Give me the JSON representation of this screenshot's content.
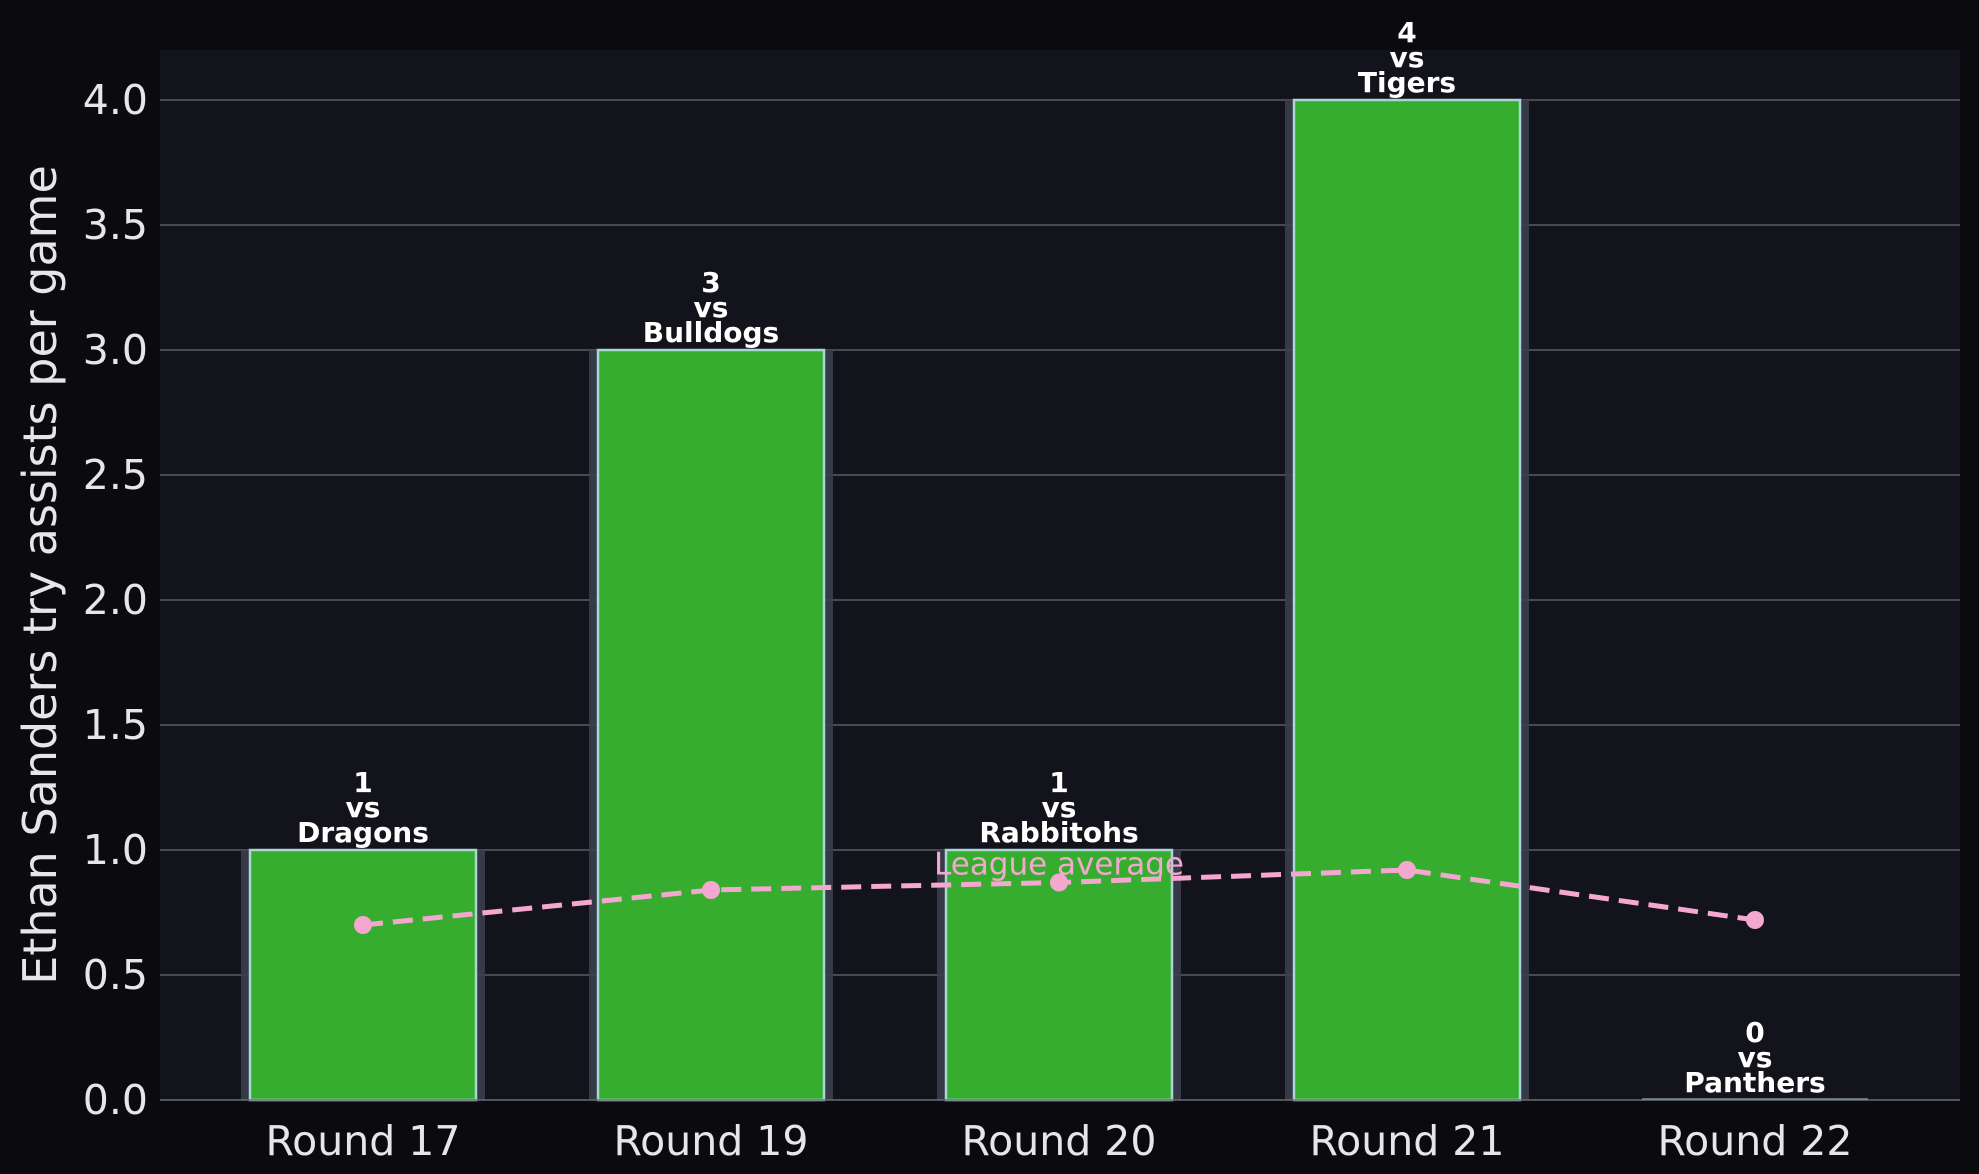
{
  "chart_data": {
    "type": "bar",
    "categories": [
      "Round 17",
      "Round 19",
      "Round 20",
      "Round 21",
      "Round 22"
    ],
    "series": [
      {
        "values": [
          1,
          3,
          1,
          4,
          0
        ],
        "color": "#36ad2f"
      },
      {
        "name": "League average",
        "type": "line",
        "values": [
          0.7,
          0.84,
          0.87,
          0.92,
          0.72
        ],
        "color": "#f4a7cf",
        "style": "dashed"
      }
    ],
    "opponents": [
      "Dragons",
      "Bulldogs",
      "Rabbitohs",
      "Tigers",
      "Panthers"
    ],
    "bar_label_connector": "vs",
    "series_label": "League average",
    "title": "",
    "xlabel": "",
    "ylabel": "Ethan Sanders try assists per game",
    "ylim": [
      0,
      4.2
    ],
    "yticks": [
      "0.0",
      "0.5",
      "1.0",
      "1.5",
      "2.0",
      "2.5",
      "3.0",
      "3.5",
      "4.0"
    ],
    "grid": "horizontal",
    "colors": {
      "background": "#0b0b0f",
      "plot_background": "#12131b",
      "bar": "#36ad2f",
      "bar_edge": "#a9d6d2",
      "bar_shadow": "#3b3f4e",
      "line": "#f4a7cf",
      "grid": "#5a5c66",
      "text": "#e6e6e6"
    }
  }
}
